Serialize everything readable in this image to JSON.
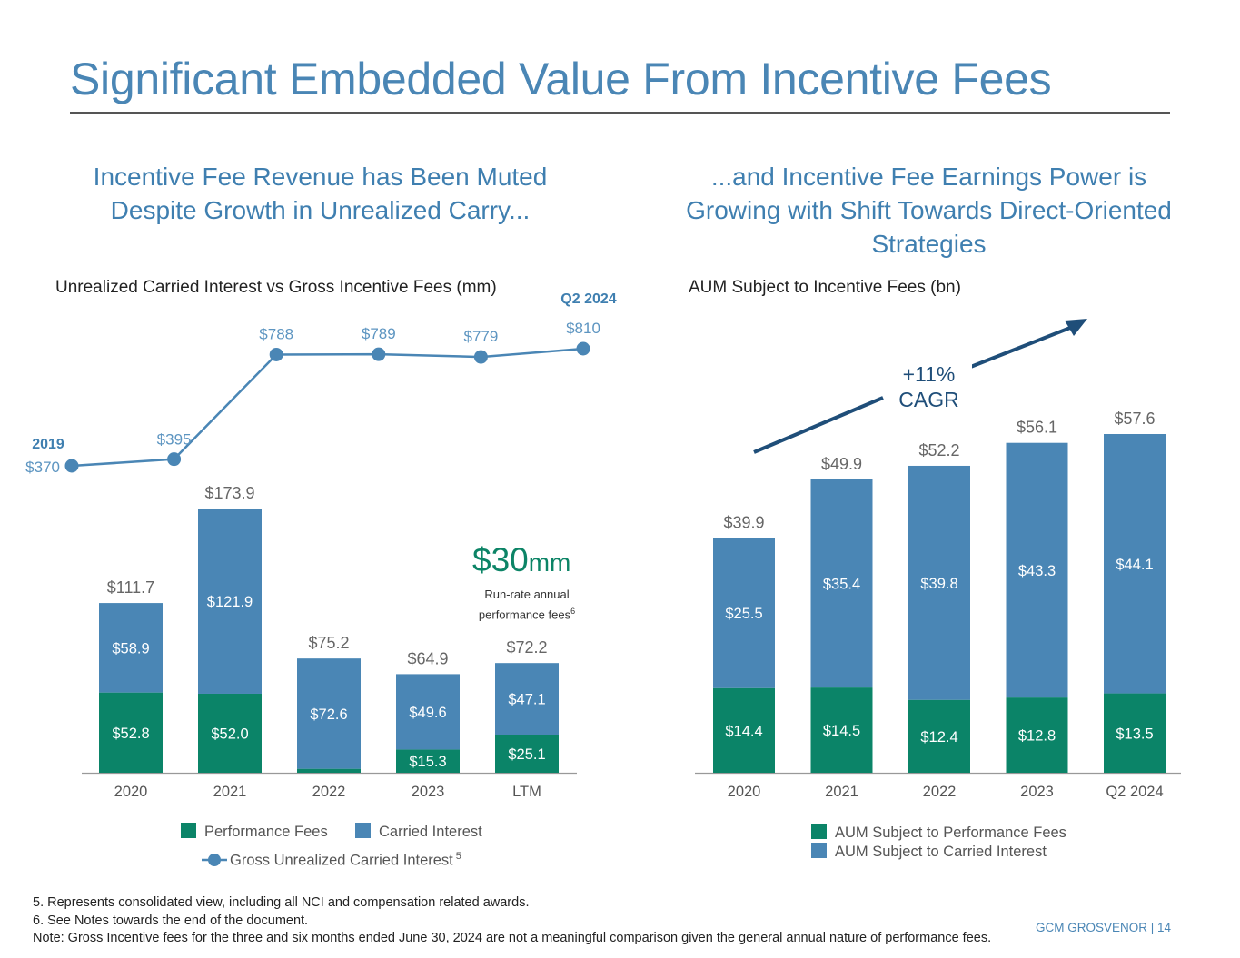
{
  "page": {
    "title": "Significant Embedded Value From Incentive Fees",
    "footer_brand": "GCM GROSVENOR | 14"
  },
  "left_panel": {
    "subhead": "Incentive Fee Revenue has Been Muted Despite Growth in Unrealized Carry...",
    "chart_title": "Unrealized Carried Interest vs Gross Incentive Fees (mm)",
    "run_rate": {
      "value": "$30",
      "unit": "mm",
      "label": "Run-rate annual performance fees",
      "footnote_ref": "6"
    },
    "legend": {
      "performance_fees": "Performance Fees",
      "carried_interest": "Carried Interest",
      "gross_unrealized": "Gross Unrealized Carried Interest",
      "gross_unrealized_ref": "5"
    }
  },
  "right_panel": {
    "subhead": "...and Incentive Fee Earnings Power is Growing with Shift Towards Direct-Oriented Strategies",
    "chart_title": "AUM Subject to Incentive Fees (bn)",
    "cagr_line1": "+11%",
    "cagr_line2": "CAGR",
    "legend": {
      "performance": "AUM Subject to Performance Fees",
      "carried": "AUM Subject to Carried Interest"
    }
  },
  "footnotes": [
    "5. Represents consolidated view, including all NCI and compensation related awards.",
    "6. See Notes towards the end of the document.",
    "Note:  Gross Incentive fees for the three and six months ended June 30, 2024 are not a meaningful comparison given the general annual nature of performance fees."
  ],
  "colors": {
    "performance": "#0b8468",
    "carried": "#4a86b5",
    "line": "#4a86b5",
    "arrow": "#1f4e79",
    "title": "#4a86b5"
  },
  "chart_data": [
    {
      "type": "line",
      "title": "Unrealized Carried Interest vs Gross Incentive Fees (mm)",
      "series_name": "Gross Unrealized Carried Interest",
      "x": [
        "2019",
        "2020",
        "2021",
        "2022",
        "2023",
        "Q2 2024"
      ],
      "values": [
        370,
        395,
        788,
        789,
        779,
        810
      ],
      "labels": [
        "$370",
        "$395",
        "$788",
        "$789",
        "$779",
        "$810"
      ],
      "endpoint_labels": {
        "start": "2019",
        "end": "Q2 2024"
      }
    },
    {
      "type": "bar",
      "stacked": true,
      "title": "Gross Incentive Fees (mm)",
      "categories": [
        "2020",
        "2021",
        "2022",
        "2023",
        "LTM"
      ],
      "series": [
        {
          "name": "Performance Fees",
          "values": [
            52.8,
            52.0,
            2.6,
            15.3,
            25.1
          ],
          "labels": [
            "$52.8",
            "$52.0",
            "$2.6",
            "$15.3",
            "$25.1"
          ]
        },
        {
          "name": "Carried Interest",
          "values": [
            58.9,
            121.9,
            72.6,
            49.6,
            47.1
          ],
          "labels": [
            "$58.9",
            "$121.9",
            "$72.6",
            "$49.6",
            "$47.1"
          ]
        }
      ],
      "totals": [
        "$111.7",
        "$173.9",
        "$75.2",
        "$64.9",
        "$72.2"
      ],
      "total_values": [
        111.7,
        173.9,
        75.2,
        64.9,
        72.2
      ],
      "legend": "bottom"
    },
    {
      "type": "bar",
      "stacked": true,
      "title": "AUM Subject to Incentive Fees (bn)",
      "categories": [
        "2020",
        "2021",
        "2022",
        "2023",
        "Q2 2024"
      ],
      "series": [
        {
          "name": "AUM Subject to Performance Fees",
          "values": [
            14.4,
            14.5,
            12.4,
            12.8,
            13.5
          ],
          "labels": [
            "$14.4",
            "$14.5",
            "$12.4",
            "$12.8",
            "$13.5"
          ]
        },
        {
          "name": "AUM Subject to Carried Interest",
          "values": [
            25.5,
            35.4,
            39.8,
            43.3,
            44.1
          ],
          "labels": [
            "$25.5",
            "$35.4",
            "$39.8",
            "$43.3",
            "$44.1"
          ]
        }
      ],
      "totals": [
        "$39.9",
        "$49.9",
        "$52.2",
        "$56.1",
        "$57.6"
      ],
      "total_values": [
        39.9,
        49.9,
        52.2,
        56.1,
        57.6
      ],
      "annotation": "+11% CAGR",
      "legend": "bottom"
    }
  ]
}
